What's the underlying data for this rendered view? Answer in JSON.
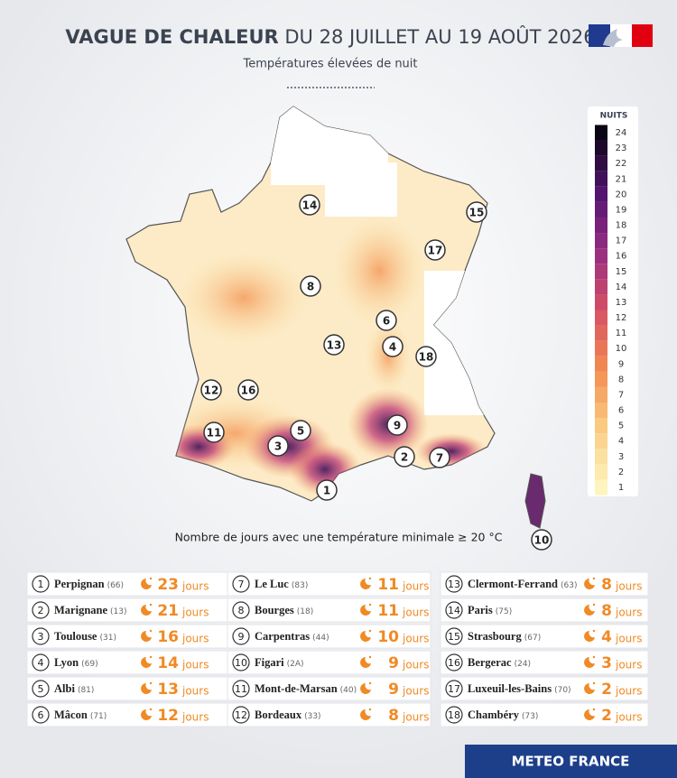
{
  "header": {
    "title_bold": "VAGUE DE CHALEUR",
    "title_rest": "DU 28 JUILLET AU 19 AOÛT 2026",
    "subtitle": "Températures élevées de nuit"
  },
  "legend": {
    "title": "NUITS",
    "ticks": [
      1,
      2,
      3,
      4,
      5,
      6,
      7,
      8,
      9,
      10,
      11,
      12,
      13,
      14,
      15,
      16,
      17,
      18,
      19,
      20,
      21,
      22,
      23,
      24
    ]
  },
  "caption": "Nombre de jours avec une température minimale ≥ 20 °C",
  "unit": "jours",
  "stations": [
    {
      "rank": 1,
      "city": "Perpignan",
      "dept": "(66)",
      "days": 23
    },
    {
      "rank": 2,
      "city": "Marignane",
      "dept": "(13)",
      "days": 21
    },
    {
      "rank": 3,
      "city": "Toulouse",
      "dept": "(31)",
      "days": 16
    },
    {
      "rank": 4,
      "city": "Lyon",
      "dept": "(69)",
      "days": 14
    },
    {
      "rank": 5,
      "city": "Albi",
      "dept": "(81)",
      "days": 13
    },
    {
      "rank": 6,
      "city": "Mâcon",
      "dept": "(71)",
      "days": 12
    },
    {
      "rank": 7,
      "city": "Le Luc",
      "dept": "(83)",
      "days": 11
    },
    {
      "rank": 8,
      "city": "Bourges",
      "dept": "(18)",
      "days": 11
    },
    {
      "rank": 9,
      "city": "Carpentras",
      "dept": "(44)",
      "days": 10
    },
    {
      "rank": 10,
      "city": "Figari",
      "dept": "(2A)",
      "days": 9
    },
    {
      "rank": 11,
      "city": "Mont-de-Marsan",
      "dept": "(40)",
      "days": 9
    },
    {
      "rank": 12,
      "city": "Bordeaux",
      "dept": "(33)",
      "days": 8
    },
    {
      "rank": 13,
      "city": "Clermont-Ferrand",
      "dept": "(63)",
      "days": 8
    },
    {
      "rank": 14,
      "city": "Paris",
      "dept": "(75)",
      "days": 8
    },
    {
      "rank": 15,
      "city": "Strasbourg",
      "dept": "(67)",
      "days": 4
    },
    {
      "rank": 16,
      "city": "Bergerac",
      "dept": "(24)",
      "days": 3
    },
    {
      "rank": 17,
      "city": "Luxeuil-les-Bains",
      "dept": "(70)",
      "days": 2
    },
    {
      "rank": 18,
      "city": "Chambéry",
      "dept": "(73)",
      "days": 2
    }
  ],
  "footer": "METEO FRANCE"
}
